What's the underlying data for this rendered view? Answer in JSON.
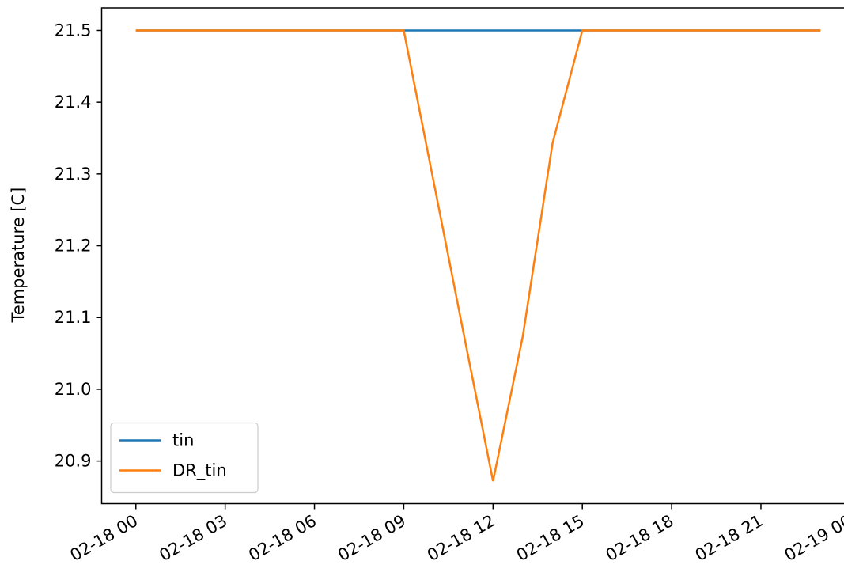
{
  "chart_data": {
    "type": "line",
    "ylabel": "Temperature [C]",
    "x": [
      "02-18 00",
      "02-18 01",
      "02-18 02",
      "02-18 03",
      "02-18 04",
      "02-18 05",
      "02-18 06",
      "02-18 07",
      "02-18 08",
      "02-18 09",
      "02-18 10",
      "02-18 11",
      "02-18 12",
      "02-18 13",
      "02-18 14",
      "02-18 15",
      "02-18 16",
      "02-18 17",
      "02-18 18",
      "02-18 19",
      "02-18 20",
      "02-18 21",
      "02-18 22",
      "02-18 23"
    ],
    "series": [
      {
        "name": "tin",
        "color": "#1f77b4",
        "values": [
          21.5,
          21.5,
          21.5,
          21.5,
          21.5,
          21.5,
          21.5,
          21.5,
          21.5,
          21.5,
          21.5,
          21.5,
          21.5,
          21.5,
          21.5,
          21.5,
          21.5,
          21.5,
          21.5,
          21.5,
          21.5,
          21.5,
          21.5,
          21.5
        ]
      },
      {
        "name": "DR_tin",
        "color": "#ff7f0e",
        "values": [
          21.5,
          21.5,
          21.5,
          21.5,
          21.5,
          21.5,
          21.5,
          21.5,
          21.5,
          21.5,
          21.29,
          21.08,
          20.872,
          21.074,
          21.343,
          21.5,
          21.5,
          21.5,
          21.5,
          21.5,
          21.5,
          21.5,
          21.5,
          21.5
        ]
      }
    ],
    "xlim": [
      "02-17 22:51",
      "02-19 00:09"
    ],
    "xticks": [
      "02-18 00",
      "02-18 03",
      "02-18 06",
      "02-18 09",
      "02-18 12",
      "02-18 15",
      "02-18 18",
      "02-18 21",
      "02-19 00"
    ],
    "ylim": [
      20.8406,
      21.5314
    ],
    "yticks": [
      20.9,
      {
        "value": 21,
        "label": "21.0"
      },
      21.1,
      21.2,
      21.3,
      21.4,
      21.5
    ],
    "legend": "lower left"
  }
}
